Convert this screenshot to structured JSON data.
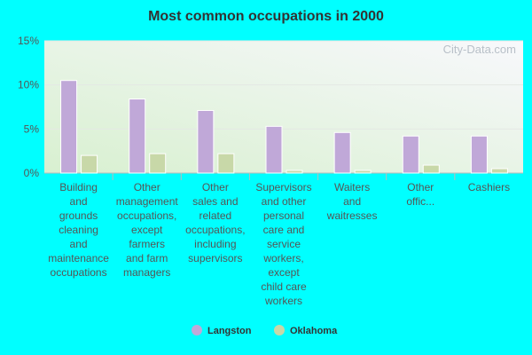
{
  "chart_data": {
    "type": "bar",
    "title": "Most common occupations in 2000",
    "watermark": "City-Data.com",
    "categories": [
      "Building and grounds cleaning and maintenance occupations",
      "Other management occupations, except farmers and farm managers",
      "Other sales and related occupations, including supervisors",
      "Supervisors and other personal care and service workers, except child care workers",
      "Waiters and waitresses",
      "Other offic...",
      "Cashiers"
    ],
    "series": [
      {
        "name": "Langston",
        "color": "#c0a8d8",
        "values": [
          10.5,
          8.4,
          7.1,
          5.3,
          4.6,
          4.2,
          4.2
        ]
      },
      {
        "name": "Oklahoma",
        "color": "#c8d8a8",
        "values": [
          2.0,
          2.2,
          2.2,
          0.3,
          0.3,
          0.9,
          0.5
        ]
      }
    ],
    "ylim": [
      0,
      15
    ],
    "yticks": [
      {
        "value": 0,
        "label": "0%"
      },
      {
        "value": 5,
        "label": "5%"
      },
      {
        "value": 10,
        "label": "10%"
      },
      {
        "value": 15,
        "label": "15%"
      }
    ],
    "grid": true
  }
}
